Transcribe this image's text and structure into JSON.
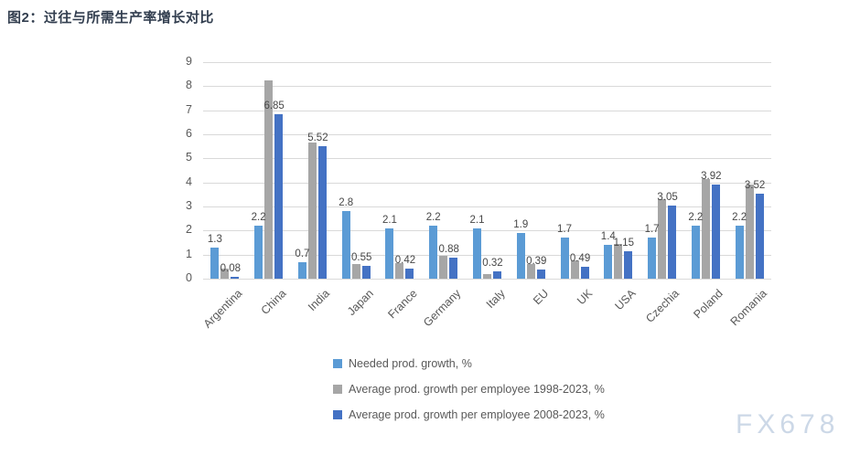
{
  "page": {
    "title": "图2：过往与所需生产率增长对比",
    "watermark": "FX678"
  },
  "chart_data": {
    "type": "bar",
    "title": "图2：过往与所需生产率增长对比",
    "categories": [
      "Argentina",
      "China",
      "India",
      "Japan",
      "France",
      "Germany",
      "Italy",
      "EU",
      "UK",
      "USA",
      "Czechia",
      "Poland",
      "Romania"
    ],
    "series": [
      {
        "name": "Needed prod. growth, %",
        "color": "#5b9bd5",
        "values": [
          1.3,
          2.2,
          0.7,
          2.8,
          2.1,
          2.2,
          2.1,
          1.9,
          1.7,
          1.4,
          1.7,
          2.2,
          2.2
        ],
        "data_labels": [
          "1.3",
          "2.2",
          "0.7",
          "2.8",
          "2.1",
          "2.2",
          "2.1",
          "1.9",
          "1.7",
          "1.4",
          "1.7",
          "2.2",
          "2.2"
        ]
      },
      {
        "name": "Average prod. growth per employee 1998-2023, %",
        "color": "#a6a6a6",
        "values": [
          0.4,
          8.25,
          5.65,
          0.6,
          0.65,
          0.95,
          0.2,
          0.6,
          0.75,
          1.45,
          3.3,
          4.15,
          3.9
        ],
        "data_labels": []
      },
      {
        "name": "Average prod. growth per employee 2008-2023, %",
        "color": "#4472c4",
        "values": [
          0.08,
          6.85,
          5.52,
          0.55,
          0.42,
          0.88,
          0.32,
          0.39,
          0.49,
          1.15,
          3.05,
          3.92,
          3.52
        ],
        "data_labels": [
          "0.08",
          "6.85",
          "5.52",
          "0.55",
          "0.42",
          "0.88",
          "0.32",
          "0.39",
          "0.49",
          "1.15",
          "3.05",
          "3.92",
          "3.52"
        ]
      }
    ],
    "ylim": [
      0,
      9
    ],
    "y_ticks": [
      "0",
      "1",
      "2",
      "3",
      "4",
      "5",
      "6",
      "7",
      "8",
      "9"
    ],
    "grid": true,
    "legend_position": "bottom-left",
    "colors": {
      "gridline": "#d9d9d9",
      "axis_text": "#595959",
      "data_label_text": "#474747",
      "title_text": "#333f50",
      "watermark": "#ccd8e7"
    }
  }
}
